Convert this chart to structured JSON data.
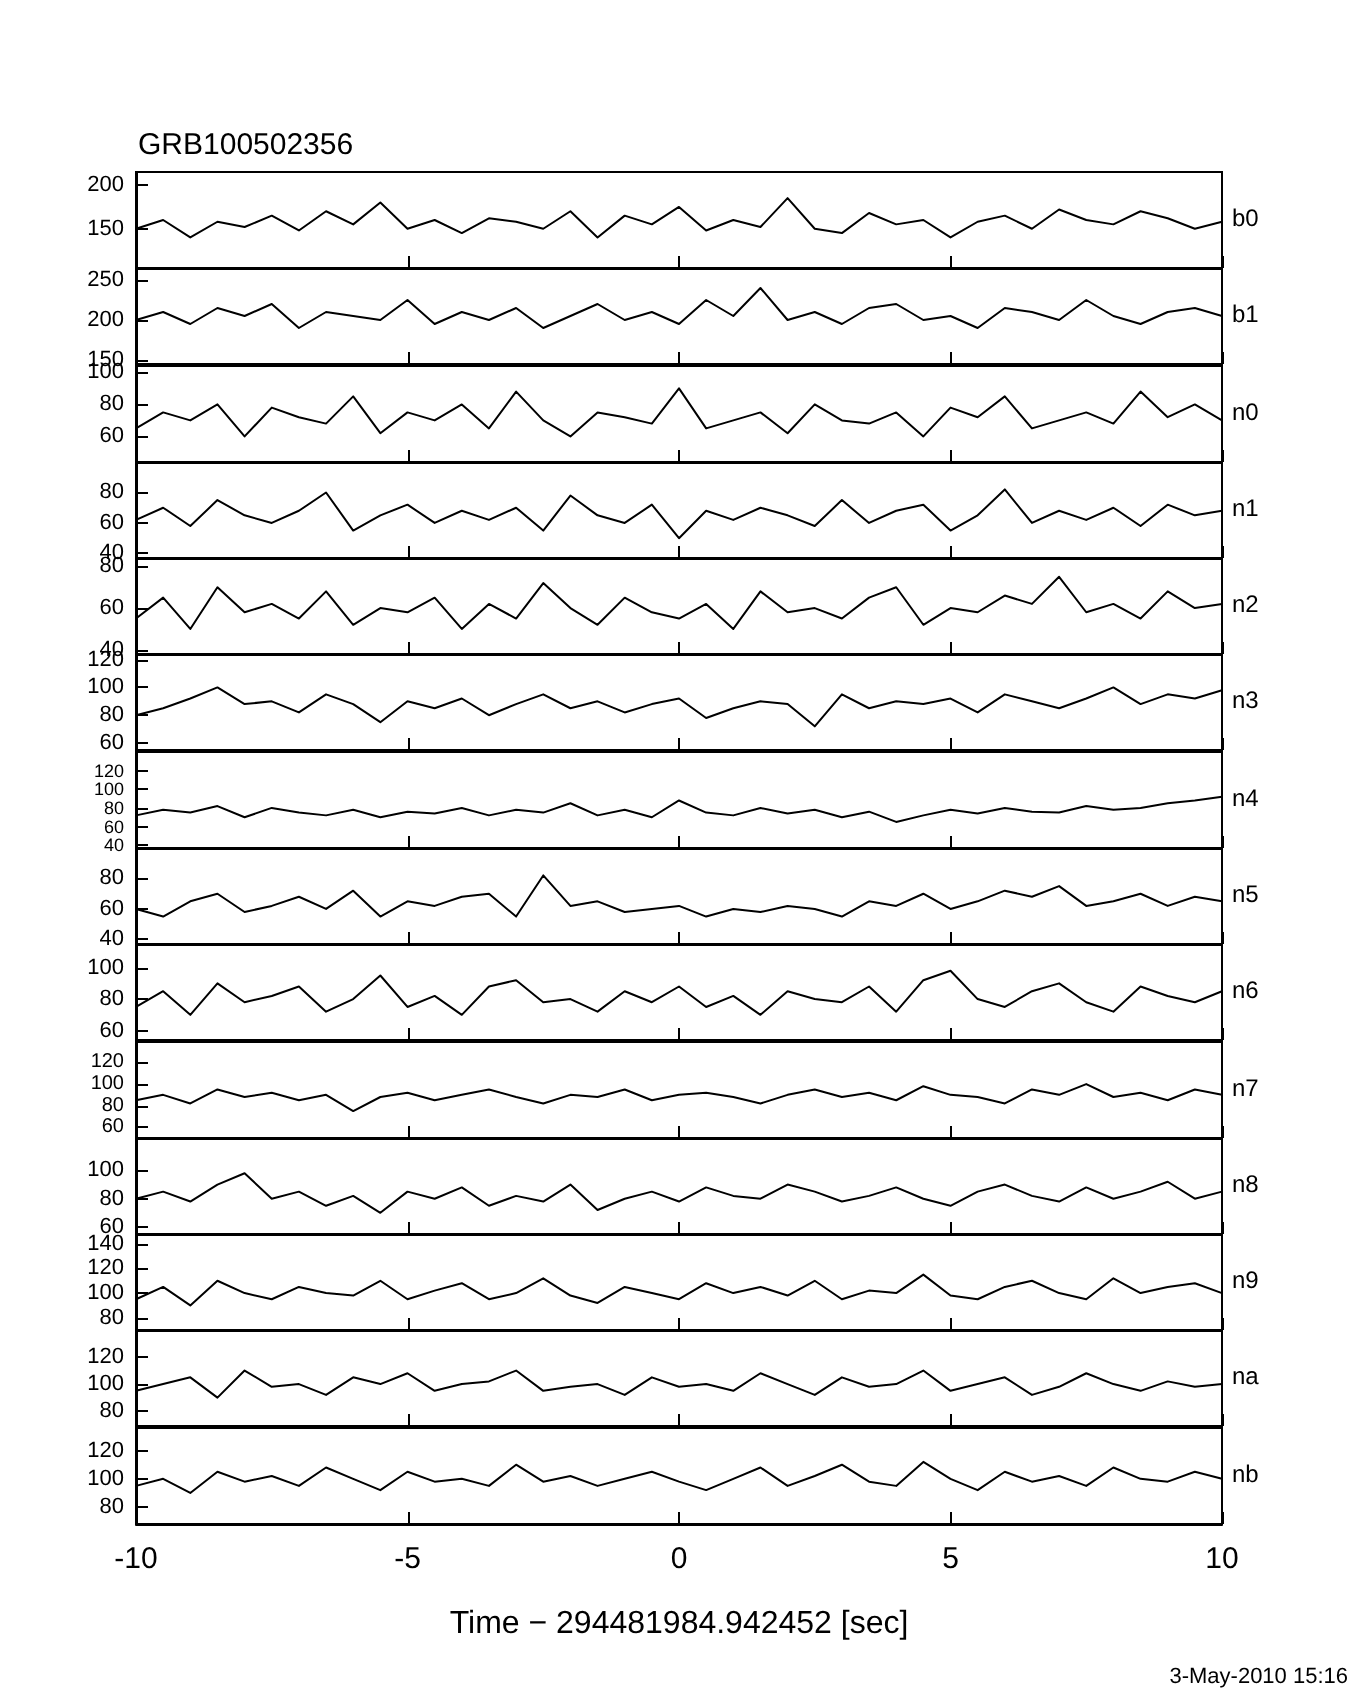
{
  "chart_data": [
    {
      "type": "line",
      "title": "GRB100502356",
      "marker": "none",
      "tick_labels": "y",
      "xlim": [
        -10,
        10
      ],
      "xticks": [
        -10,
        -5,
        0,
        5,
        10
      ],
      "ylim": [
        105,
        215
      ],
      "yticks": [
        150,
        200
      ],
      "x": [
        -10,
        -9.5,
        -9,
        -8.5,
        -8,
        -7.5,
        -7,
        -6.5,
        -6,
        -5.5,
        -5,
        -4.5,
        -4,
        -3.5,
        -3,
        -2.5,
        -2,
        -1.5,
        -1,
        -0.5,
        0,
        0.5,
        1,
        1.5,
        2,
        2.5,
        3,
        3.5,
        4,
        4.5,
        5,
        5.5,
        6,
        6.5,
        7,
        7.5,
        8,
        8.5,
        9,
        9.5,
        10
      ],
      "series": [
        {
          "name": "b0",
          "color": "#000000",
          "values": [
            150,
            160,
            140,
            158,
            152,
            165,
            148,
            170,
            155,
            180,
            150,
            160,
            145,
            162,
            158,
            150,
            170,
            140,
            165,
            155,
            175,
            148,
            160,
            152,
            185,
            150,
            145,
            168,
            155,
            160,
            140,
            158,
            165,
            150,
            172,
            160,
            155,
            170,
            162,
            150,
            158
          ]
        }
      ]
    },
    {
      "type": "line",
      "marker": "none",
      "tick_labels": "y",
      "xlim": [
        -10,
        10
      ],
      "xticks": [
        -10,
        -5,
        0,
        5,
        10
      ],
      "ylim": [
        145,
        265
      ],
      "yticks": [
        150,
        200,
        250
      ],
      "x": [
        -10,
        -9.5,
        -9,
        -8.5,
        -8,
        -7.5,
        -7,
        -6.5,
        -6,
        -5.5,
        -5,
        -4.5,
        -4,
        -3.5,
        -3,
        -2.5,
        -2,
        -1.5,
        -1,
        -0.5,
        0,
        0.5,
        1,
        1.5,
        2,
        2.5,
        3,
        3.5,
        4,
        4.5,
        5,
        5.5,
        6,
        6.5,
        7,
        7.5,
        8,
        8.5,
        9,
        9.5,
        10
      ],
      "series": [
        {
          "name": "b1",
          "color": "#000000",
          "values": [
            200,
            210,
            195,
            215,
            205,
            220,
            190,
            210,
            205,
            200,
            225,
            195,
            210,
            200,
            215,
            190,
            205,
            220,
            200,
            210,
            195,
            225,
            205,
            240,
            200,
            210,
            195,
            215,
            220,
            200,
            205,
            190,
            215,
            210,
            200,
            225,
            205,
            195,
            210,
            215,
            205
          ]
        }
      ]
    },
    {
      "type": "line",
      "marker": "none",
      "tick_labels": "y",
      "xlim": [
        -10,
        10
      ],
      "xticks": [
        -10,
        -5,
        0,
        5,
        10
      ],
      "ylim": [
        44,
        104
      ],
      "yticks": [
        60,
        80,
        100
      ],
      "x": [
        -10,
        -9.5,
        -9,
        -8.5,
        -8,
        -7.5,
        -7,
        -6.5,
        -6,
        -5.5,
        -5,
        -4.5,
        -4,
        -3.5,
        -3,
        -2.5,
        -2,
        -1.5,
        -1,
        -0.5,
        0,
        0.5,
        1,
        1.5,
        2,
        2.5,
        3,
        3.5,
        4,
        4.5,
        5,
        5.5,
        6,
        6.5,
        7,
        7.5,
        8,
        8.5,
        9,
        9.5,
        10
      ],
      "series": [
        {
          "name": "n0",
          "color": "#000000",
          "values": [
            65,
            75,
            70,
            80,
            60,
            78,
            72,
            68,
            85,
            62,
            75,
            70,
            80,
            65,
            88,
            70,
            60,
            75,
            72,
            68,
            90,
            65,
            70,
            75,
            62,
            80,
            70,
            68,
            75,
            60,
            78,
            72,
            85,
            65,
            70,
            75,
            68,
            88,
            72,
            80,
            70
          ]
        }
      ]
    },
    {
      "type": "line",
      "marker": "none",
      "tick_labels": "y",
      "xlim": [
        -10,
        10
      ],
      "xticks": [
        -10,
        -5,
        0,
        5,
        10
      ],
      "ylim": [
        37,
        100
      ],
      "yticks": [
        40,
        60,
        80
      ],
      "x": [
        -10,
        -9.5,
        -9,
        -8.5,
        -8,
        -7.5,
        -7,
        -6.5,
        -6,
        -5.5,
        -5,
        -4.5,
        -4,
        -3.5,
        -3,
        -2.5,
        -2,
        -1.5,
        -1,
        -0.5,
        0,
        0.5,
        1,
        1.5,
        2,
        2.5,
        3,
        3.5,
        4,
        4.5,
        5,
        5.5,
        6,
        6.5,
        7,
        7.5,
        8,
        8.5,
        9,
        9.5,
        10
      ],
      "series": [
        {
          "name": "n1",
          "color": "#000000",
          "values": [
            62,
            70,
            58,
            75,
            65,
            60,
            68,
            80,
            55,
            65,
            72,
            60,
            68,
            62,
            70,
            55,
            78,
            65,
            60,
            72,
            50,
            68,
            62,
            70,
            65,
            58,
            75,
            60,
            68,
            72,
            55,
            65,
            82,
            60,
            68,
            62,
            70,
            58,
            72,
            65,
            68
          ]
        }
      ]
    },
    {
      "type": "line",
      "marker": "none",
      "tick_labels": "y",
      "xlim": [
        -10,
        10
      ],
      "xticks": [
        -10,
        -5,
        0,
        5,
        10
      ],
      "ylim": [
        38,
        84
      ],
      "yticks": [
        40,
        60,
        80
      ],
      "x": [
        -10,
        -9.5,
        -9,
        -8.5,
        -8,
        -7.5,
        -7,
        -6.5,
        -6,
        -5.5,
        -5,
        -4.5,
        -4,
        -3.5,
        -3,
        -2.5,
        -2,
        -1.5,
        -1,
        -0.5,
        0,
        0.5,
        1,
        1.5,
        2,
        2.5,
        3,
        3.5,
        4,
        4.5,
        5,
        5.5,
        6,
        6.5,
        7,
        7.5,
        8,
        8.5,
        9,
        9.5,
        10
      ],
      "series": [
        {
          "name": "n2",
          "color": "#000000",
          "values": [
            55,
            65,
            50,
            70,
            58,
            62,
            55,
            68,
            52,
            60,
            58,
            65,
            50,
            62,
            55,
            72,
            60,
            52,
            65,
            58,
            55,
            62,
            50,
            68,
            58,
            60,
            55,
            65,
            70,
            52,
            60,
            58,
            66,
            62,
            75,
            58,
            62,
            55,
            68,
            60,
            62
          ]
        }
      ]
    },
    {
      "type": "line",
      "marker": "none",
      "tick_labels": "y",
      "xlim": [
        -10,
        10
      ],
      "xticks": [
        -10,
        -5,
        0,
        5,
        10
      ],
      "ylim": [
        55,
        124
      ],
      "yticks": [
        60,
        80,
        100,
        120
      ],
      "x": [
        -10,
        -9.5,
        -9,
        -8.5,
        -8,
        -7.5,
        -7,
        -6.5,
        -6,
        -5.5,
        -5,
        -4.5,
        -4,
        -3.5,
        -3,
        -2.5,
        -2,
        -1.5,
        -1,
        -0.5,
        0,
        0.5,
        1,
        1.5,
        2,
        2.5,
        3,
        3.5,
        4,
        4.5,
        5,
        5.5,
        6,
        6.5,
        7,
        7.5,
        8,
        8.5,
        9,
        9.5,
        10
      ],
      "series": [
        {
          "name": "n3",
          "color": "#000000",
          "values": [
            80,
            85,
            92,
            100,
            88,
            90,
            82,
            95,
            88,
            75,
            90,
            85,
            92,
            80,
            88,
            95,
            85,
            90,
            82,
            88,
            92,
            78,
            85,
            90,
            88,
            72,
            95,
            85,
            90,
            88,
            92,
            82,
            95,
            90,
            85,
            92,
            100,
            88,
            95,
            92,
            98
          ]
        }
      ]
    },
    {
      "type": "line",
      "marker": "none",
      "tick_labels": "y",
      "xlim": [
        -10,
        10
      ],
      "xticks": [
        -10,
        -5,
        0,
        5,
        10
      ],
      "ylim": [
        37,
        140
      ],
      "yticks": [
        40,
        60,
        80,
        100,
        120
      ],
      "x": [
        -10,
        -9.5,
        -9,
        -8.5,
        -8,
        -7.5,
        -7,
        -6.5,
        -6,
        -5.5,
        -5,
        -4.5,
        -4,
        -3.5,
        -3,
        -2.5,
        -2,
        -1.5,
        -1,
        -0.5,
        0,
        0.5,
        1,
        1.5,
        2,
        2.5,
        3,
        3.5,
        4,
        4.5,
        5,
        5.5,
        6,
        6.5,
        7,
        7.5,
        8,
        8.5,
        9,
        9.5,
        10
      ],
      "series": [
        {
          "name": "n4",
          "color": "#000000",
          "values": [
            72,
            78,
            75,
            82,
            70,
            80,
            75,
            72,
            78,
            70,
            76,
            74,
            80,
            72,
            78,
            75,
            85,
            72,
            78,
            70,
            88,
            75,
            72,
            80,
            74,
            78,
            70,
            76,
            65,
            72,
            78,
            74,
            80,
            76,
            75,
            82,
            78,
            80,
            85,
            88,
            92
          ]
        }
      ]
    },
    {
      "type": "line",
      "marker": "none",
      "tick_labels": "y",
      "xlim": [
        -10,
        10
      ],
      "xticks": [
        -10,
        -5,
        0,
        5,
        10
      ],
      "ylim": [
        37,
        100
      ],
      "yticks": [
        40,
        60,
        80
      ],
      "x": [
        -10,
        -9.5,
        -9,
        -8.5,
        -8,
        -7.5,
        -7,
        -6.5,
        -6,
        -5.5,
        -5,
        -4.5,
        -4,
        -3.5,
        -3,
        -2.5,
        -2,
        -1.5,
        -1,
        -0.5,
        0,
        0.5,
        1,
        1.5,
        2,
        2.5,
        3,
        3.5,
        4,
        4.5,
        5,
        5.5,
        6,
        6.5,
        7,
        7.5,
        8,
        8.5,
        9,
        9.5,
        10
      ],
      "series": [
        {
          "name": "n5",
          "color": "#000000",
          "values": [
            60,
            55,
            65,
            70,
            58,
            62,
            68,
            60,
            72,
            55,
            65,
            62,
            68,
            70,
            55,
            82,
            62,
            65,
            58,
            60,
            62,
            55,
            60,
            58,
            62,
            60,
            55,
            65,
            62,
            70,
            60,
            65,
            72,
            68,
            75,
            62,
            65,
            70,
            62,
            68,
            65
          ]
        }
      ]
    },
    {
      "type": "line",
      "marker": "none",
      "tick_labels": "y",
      "xlim": [
        -10,
        10
      ],
      "xticks": [
        -10,
        -5,
        0,
        5,
        10
      ],
      "ylim": [
        54,
        115
      ],
      "yticks": [
        60,
        80,
        100
      ],
      "x": [
        -10,
        -9.5,
        -9,
        -8.5,
        -8,
        -7.5,
        -7,
        -6.5,
        -6,
        -5.5,
        -5,
        -4.5,
        -4,
        -3.5,
        -3,
        -2.5,
        -2,
        -1.5,
        -1,
        -0.5,
        0,
        0.5,
        1,
        1.5,
        2,
        2.5,
        3,
        3.5,
        4,
        4.5,
        5,
        5.5,
        6,
        6.5,
        7,
        7.5,
        8,
        8.5,
        9,
        9.5,
        10
      ],
      "series": [
        {
          "name": "n6",
          "color": "#000000",
          "values": [
            75,
            85,
            70,
            90,
            78,
            82,
            88,
            72,
            80,
            95,
            75,
            82,
            70,
            88,
            92,
            78,
            80,
            72,
            85,
            78,
            88,
            75,
            82,
            70,
            85,
            80,
            78,
            88,
            72,
            92,
            98,
            80,
            75,
            85,
            90,
            78,
            72,
            88,
            82,
            78,
            85
          ]
        }
      ]
    },
    {
      "type": "line",
      "marker": "none",
      "tick_labels": "y",
      "xlim": [
        -10,
        10
      ],
      "xticks": [
        -10,
        -5,
        0,
        5,
        10
      ],
      "ylim": [
        50,
        139
      ],
      "yticks": [
        60,
        80,
        100,
        120
      ],
      "x": [
        -10,
        -9.5,
        -9,
        -8.5,
        -8,
        -7.5,
        -7,
        -6.5,
        -6,
        -5.5,
        -5,
        -4.5,
        -4,
        -3.5,
        -3,
        -2.5,
        -2,
        -1.5,
        -1,
        -0.5,
        0,
        0.5,
        1,
        1.5,
        2,
        2.5,
        3,
        3.5,
        4,
        4.5,
        5,
        5.5,
        6,
        6.5,
        7,
        7.5,
        8,
        8.5,
        9,
        9.5,
        10
      ],
      "series": [
        {
          "name": "n7",
          "color": "#000000",
          "values": [
            85,
            90,
            82,
            95,
            88,
            92,
            85,
            90,
            75,
            88,
            92,
            85,
            90,
            95,
            88,
            82,
            90,
            88,
            95,
            85,
            90,
            92,
            88,
            82,
            90,
            95,
            88,
            92,
            85,
            98,
            90,
            88,
            82,
            95,
            90,
            100,
            88,
            92,
            85,
            95,
            90
          ]
        }
      ]
    },
    {
      "type": "line",
      "marker": "none",
      "tick_labels": "y",
      "xlim": [
        -10,
        10
      ],
      "xticks": [
        -10,
        -5,
        0,
        5,
        10
      ],
      "ylim": [
        55,
        123
      ],
      "yticks": [
        60,
        80,
        100
      ],
      "x": [
        -10,
        -9.5,
        -9,
        -8.5,
        -8,
        -7.5,
        -7,
        -6.5,
        -6,
        -5.5,
        -5,
        -4.5,
        -4,
        -3.5,
        -3,
        -2.5,
        -2,
        -1.5,
        -1,
        -0.5,
        0,
        0.5,
        1,
        1.5,
        2,
        2.5,
        3,
        3.5,
        4,
        4.5,
        5,
        5.5,
        6,
        6.5,
        7,
        7.5,
        8,
        8.5,
        9,
        9.5,
        10
      ],
      "series": [
        {
          "name": "n8",
          "color": "#000000",
          "values": [
            80,
            85,
            78,
            90,
            98,
            80,
            85,
            75,
            82,
            70,
            85,
            80,
            88,
            75,
            82,
            78,
            90,
            72,
            80,
            85,
            78,
            88,
            82,
            80,
            90,
            85,
            78,
            82,
            88,
            80,
            75,
            85,
            90,
            82,
            78,
            88,
            80,
            85,
            92,
            80,
            85
          ]
        }
      ]
    },
    {
      "type": "line",
      "marker": "none",
      "tick_labels": "y",
      "xlim": [
        -10,
        10
      ],
      "xticks": [
        -10,
        -5,
        0,
        5,
        10
      ],
      "ylim": [
        70,
        148
      ],
      "yticks": [
        80,
        100,
        120,
        140
      ],
      "x": [
        -10,
        -9.5,
        -9,
        -8.5,
        -8,
        -7.5,
        -7,
        -6.5,
        -6,
        -5.5,
        -5,
        -4.5,
        -4,
        -3.5,
        -3,
        -2.5,
        -2,
        -1.5,
        -1,
        -0.5,
        0,
        0.5,
        1,
        1.5,
        2,
        2.5,
        3,
        3.5,
        4,
        4.5,
        5,
        5.5,
        6,
        6.5,
        7,
        7.5,
        8,
        8.5,
        9,
        9.5,
        10
      ],
      "series": [
        {
          "name": "n9",
          "color": "#000000",
          "values": [
            95,
            105,
            90,
            110,
            100,
            95,
            105,
            100,
            98,
            110,
            95,
            102,
            108,
            95,
            100,
            112,
            98,
            92,
            105,
            100,
            95,
            108,
            100,
            105,
            98,
            110,
            95,
            102,
            100,
            115,
            98,
            95,
            105,
            110,
            100,
            95,
            112,
            100,
            105,
            108,
            100
          ]
        }
      ]
    },
    {
      "type": "line",
      "marker": "none",
      "tick_labels": "y",
      "xlim": [
        -10,
        10
      ],
      "xticks": [
        -10,
        -5,
        0,
        5,
        10
      ],
      "ylim": [
        69,
        140
      ],
      "yticks": [
        80,
        100,
        120
      ],
      "x": [
        -10,
        -9.5,
        -9,
        -8.5,
        -8,
        -7.5,
        -7,
        -6.5,
        -6,
        -5.5,
        -5,
        -4.5,
        -4,
        -3.5,
        -3,
        -2.5,
        -2,
        -1.5,
        -1,
        -0.5,
        0,
        0.5,
        1,
        1.5,
        2,
        2.5,
        3,
        3.5,
        4,
        4.5,
        5,
        5.5,
        6,
        6.5,
        7,
        7.5,
        8,
        8.5,
        9,
        9.5,
        10
      ],
      "series": [
        {
          "name": "na",
          "color": "#000000",
          "values": [
            95,
            100,
            105,
            90,
            110,
            98,
            100,
            92,
            105,
            100,
            108,
            95,
            100,
            102,
            110,
            95,
            98,
            100,
            92,
            105,
            98,
            100,
            95,
            108,
            100,
            92,
            105,
            98,
            100,
            110,
            95,
            100,
            105,
            92,
            98,
            108,
            100,
            95,
            102,
            98,
            100
          ]
        }
      ]
    },
    {
      "type": "line",
      "marker": "none",
      "xlabel": "Time − 294481984.942452 [sec]",
      "annotations": [
        "3-May-2010 15:16"
      ],
      "xlim": [
        -10,
        10
      ],
      "xticks": [
        -10,
        -5,
        0,
        5,
        10
      ],
      "ylim": [
        68,
        136
      ],
      "yticks": [
        80,
        100,
        120
      ],
      "x": [
        -10,
        -9.5,
        -9,
        -8.5,
        -8,
        -7.5,
        -7,
        -6.5,
        -6,
        -5.5,
        -5,
        -4.5,
        -4,
        -3.5,
        -3,
        -2.5,
        -2,
        -1.5,
        -1,
        -0.5,
        0,
        0.5,
        1,
        1.5,
        2,
        2.5,
        3,
        3.5,
        4,
        4.5,
        5,
        5.5,
        6,
        6.5,
        7,
        7.5,
        8,
        8.5,
        9,
        9.5,
        10
      ],
      "series": [
        {
          "name": "nb",
          "color": "#000000",
          "values": [
            95,
            100,
            90,
            105,
            98,
            102,
            95,
            108,
            100,
            92,
            105,
            98,
            100,
            95,
            110,
            98,
            102,
            95,
            100,
            105,
            98,
            92,
            100,
            108,
            95,
            102,
            110,
            98,
            95,
            112,
            100,
            92,
            105,
            98,
            102,
            95,
            108,
            100,
            98,
            105,
            100
          ]
        }
      ]
    }
  ]
}
